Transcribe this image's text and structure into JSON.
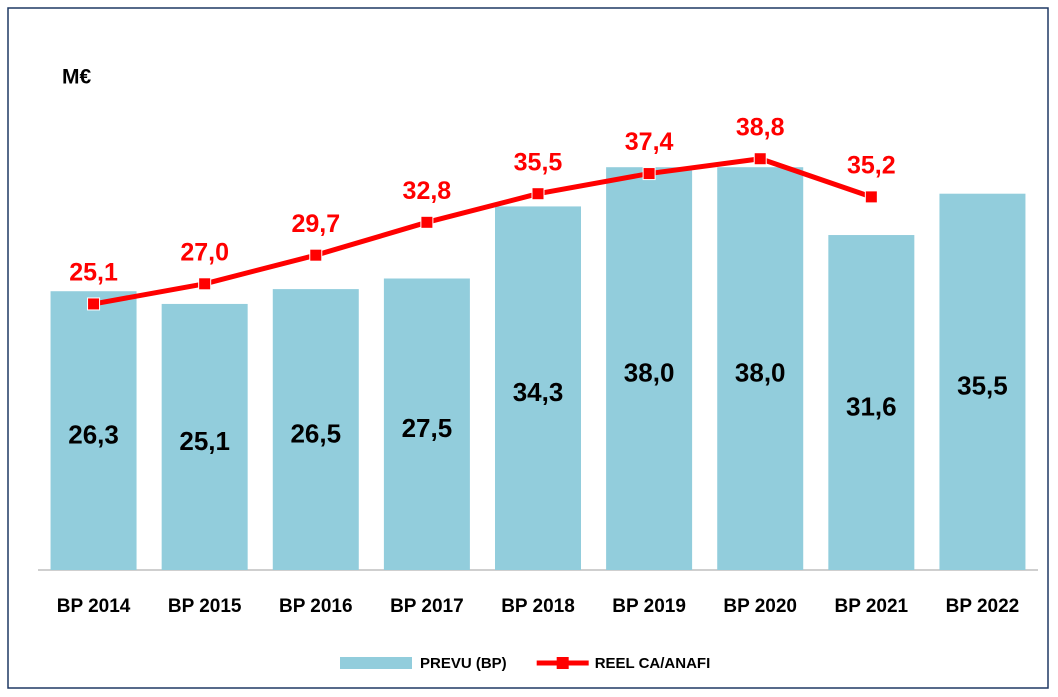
{
  "chart_data": {
    "type": "bar",
    "ylabel": "M€",
    "categories": [
      "BP 2014",
      "BP 2015",
      "BP 2016",
      "BP 2017",
      "BP 2018",
      "BP 2019",
      "BP 2020",
      "BP 2021",
      "BP 2022"
    ],
    "series": [
      {
        "name": "PREVU (BP)",
        "type": "bar",
        "color": "#92cddc",
        "values": [
          26.3,
          25.1,
          26.5,
          27.5,
          34.3,
          38.0,
          38.0,
          31.6,
          35.5
        ],
        "value_labels": [
          "26,3",
          "25,1",
          "26,5",
          "27,5",
          "34,3",
          "38,0",
          "38,0",
          "31,6",
          "35,5"
        ]
      },
      {
        "name": "REEL CA/ANAFI",
        "type": "line",
        "color": "#ff0000",
        "values": [
          25.1,
          27.0,
          29.7,
          32.8,
          35.5,
          37.4,
          38.8,
          35.2,
          null
        ],
        "value_labels": [
          "25,1",
          "27,0",
          "29,7",
          "32,8",
          "35,5",
          "37,4",
          "38,8",
          "35,2",
          null
        ]
      }
    ],
    "ylim": [
      0,
      50
    ],
    "legend": "bottom"
  }
}
